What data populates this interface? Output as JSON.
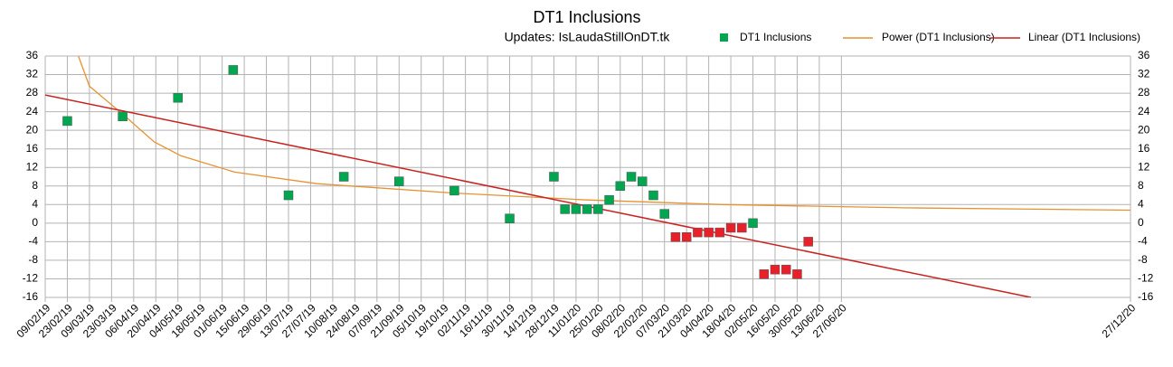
{
  "chart_data": {
    "type": "scatter",
    "title": "DT1 Inclusions",
    "subtitle": "Updates: IsLaudaStillOnDT.tk",
    "xlim": [
      "2019-02-09",
      "2020-12-27"
    ],
    "xticks": [
      {
        "value": "2019-02-09",
        "label": "09/02/19"
      },
      {
        "value": "2019-02-23",
        "label": "23/02/19"
      },
      {
        "value": "2019-03-09",
        "label": "09/03/19"
      },
      {
        "value": "2019-03-23",
        "label": "23/03/19"
      },
      {
        "value": "2019-04-06",
        "label": "06/04/19"
      },
      {
        "value": "2019-04-20",
        "label": "20/04/19"
      },
      {
        "value": "2019-05-04",
        "label": "04/05/19"
      },
      {
        "value": "2019-05-18",
        "label": "18/05/19"
      },
      {
        "value": "2019-06-01",
        "label": "01/06/19"
      },
      {
        "value": "2019-06-15",
        "label": "15/06/19"
      },
      {
        "value": "2019-06-29",
        "label": "29/06/19"
      },
      {
        "value": "2019-07-13",
        "label": "13/07/19"
      },
      {
        "value": "2019-07-27",
        "label": "27/07/19"
      },
      {
        "value": "2019-08-10",
        "label": "10/08/19"
      },
      {
        "value": "2019-08-24",
        "label": "24/08/19"
      },
      {
        "value": "2019-09-07",
        "label": "07/09/19"
      },
      {
        "value": "2019-09-21",
        "label": "21/09/19"
      },
      {
        "value": "2019-10-05",
        "label": "05/10/19"
      },
      {
        "value": "2019-10-19",
        "label": "19/10/19"
      },
      {
        "value": "2019-11-02",
        "label": "02/11/19"
      },
      {
        "value": "2019-11-16",
        "label": "16/11/19"
      },
      {
        "value": "2019-11-30",
        "label": "30/11/19"
      },
      {
        "value": "2019-12-14",
        "label": "14/12/19"
      },
      {
        "value": "2019-12-28",
        "label": "28/12/19"
      },
      {
        "value": "2020-01-11",
        "label": "11/01/20"
      },
      {
        "value": "2020-01-25",
        "label": "25/01/20"
      },
      {
        "value": "2020-02-08",
        "label": "08/02/20"
      },
      {
        "value": "2020-02-22",
        "label": "22/02/20"
      },
      {
        "value": "2020-03-07",
        "label": "07/03/20"
      },
      {
        "value": "2020-03-21",
        "label": "21/03/20"
      },
      {
        "value": "2020-04-04",
        "label": "04/04/20"
      },
      {
        "value": "2020-04-18",
        "label": "18/04/20"
      },
      {
        "value": "2020-05-02",
        "label": "02/05/20"
      },
      {
        "value": "2020-05-16",
        "label": "16/05/20"
      },
      {
        "value": "2020-05-30",
        "label": "30/05/20"
      },
      {
        "value": "2020-06-13",
        "label": "13/06/20"
      },
      {
        "value": "2020-06-27",
        "label": "27/06/20"
      },
      {
        "value": "2020-12-27",
        "label": "27/12/20"
      }
    ],
    "ylim": [
      -16,
      36
    ],
    "yticks": [
      -16,
      -12,
      -8,
      -4,
      0,
      4,
      8,
      12,
      16,
      20,
      24,
      28,
      32,
      36
    ],
    "y2lim": [
      -16,
      36
    ],
    "y2ticks": [
      -16,
      -12,
      -8,
      -4,
      0,
      4,
      8,
      12,
      16,
      20,
      24,
      28,
      32,
      36
    ],
    "grid": true,
    "legend": "top-right",
    "negative_color": "#e8202a",
    "series": [
      {
        "name": "DT1 Inclusions",
        "kind": "points",
        "color": "#00a650",
        "x": [
          "2019-02-23",
          "2019-03-30",
          "2019-05-04",
          "2019-06-08",
          "2019-07-13",
          "2019-08-17",
          "2019-09-21",
          "2019-10-26",
          "2019-11-30",
          "2019-12-28",
          "2020-01-04",
          "2020-01-11",
          "2020-01-18",
          "2020-01-25",
          "2020-02-01",
          "2020-02-08",
          "2020-02-15",
          "2020-02-22",
          "2020-02-29",
          "2020-03-07",
          "2020-03-14",
          "2020-03-21",
          "2020-03-28",
          "2020-04-04",
          "2020-04-11",
          "2020-04-18",
          "2020-04-25",
          "2020-05-02",
          "2020-05-09",
          "2020-05-16",
          "2020-05-23",
          "2020-05-30",
          "2020-06-06"
        ],
        "values": [
          22,
          23,
          27,
          33,
          6,
          10,
          9,
          7,
          1,
          10,
          3,
          3,
          3,
          3,
          5,
          8,
          10,
          9,
          6,
          2,
          -3,
          -3,
          -2,
          -2,
          -2,
          -1,
          -1,
          0,
          -11,
          -10,
          -10,
          -11,
          -4
        ]
      },
      {
        "name": "Power (DT1 Inclusions)",
        "kind": "line",
        "color": "#e8912f",
        "x": [
          "2019-03-02",
          "2019-03-09",
          "2019-03-30",
          "2019-04-19",
          "2019-05-06",
          "2019-06-09",
          "2019-07-31",
          "2019-10-25",
          "2020-01-18",
          "2020-04-13",
          "2020-08-06",
          "2020-12-27"
        ],
        "values": [
          36,
          29.5,
          23.5,
          17.5,
          14.5,
          11,
          8.5,
          6.5,
          5,
          4,
          3.3,
          2.8
        ]
      },
      {
        "name": "Linear (DT1 Inclusions)",
        "kind": "line",
        "color": "#c9211e",
        "x": [
          "2019-02-09",
          "2020-10-25"
        ],
        "values": [
          27.6,
          -16
        ]
      }
    ]
  }
}
